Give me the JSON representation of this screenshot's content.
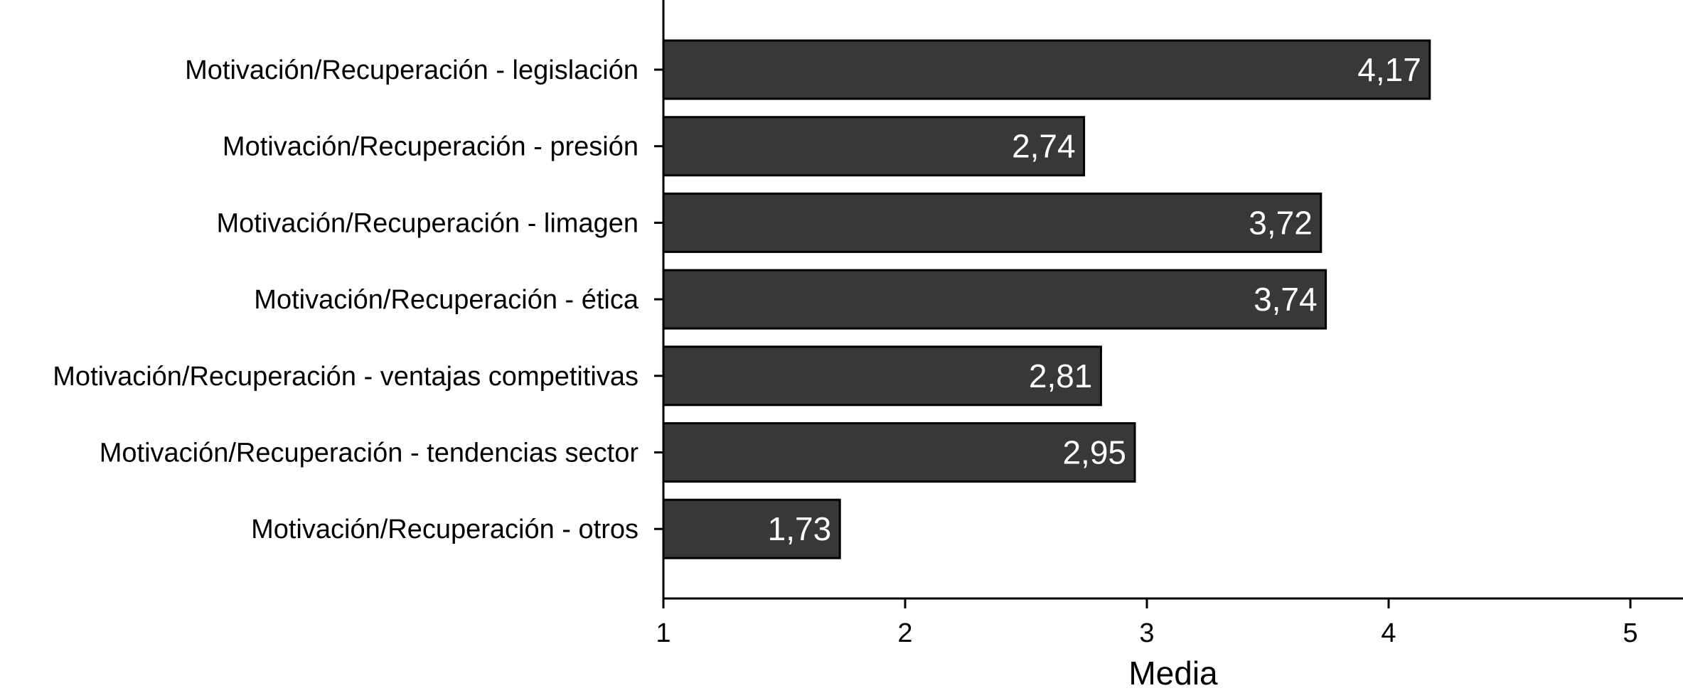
{
  "chart_data": {
    "type": "bar",
    "orientation": "horizontal",
    "categories": [
      "Motivación/Recuperación - legislación",
      "Motivación/Recuperación - presión",
      "Motivación/Recuperación - limagen",
      "Motivación/Recuperación - ética",
      "Motivación/Recuperación - ventajas competitivas",
      "Motivación/Recuperación - tendencias sector",
      "Motivación/Recuperación - otros"
    ],
    "values": [
      4.17,
      2.74,
      3.72,
      3.74,
      2.81,
      2.95,
      1.73
    ],
    "value_labels": [
      "4,17",
      "2,74",
      "3,72",
      "3,74",
      "2,81",
      "2,95",
      "1,73"
    ],
    "title": "",
    "xlabel": "Media",
    "ylabel": "",
    "xlim": [
      1,
      5.2
    ],
    "xticks": [
      1,
      2,
      3,
      4,
      5
    ],
    "xtick_labels": [
      "1",
      "2",
      "3",
      "4",
      "5"
    ],
    "grid": false,
    "bar_color": "#363839",
    "bar_edge_color": "#000000",
    "value_label_color": "#ffffff"
  }
}
